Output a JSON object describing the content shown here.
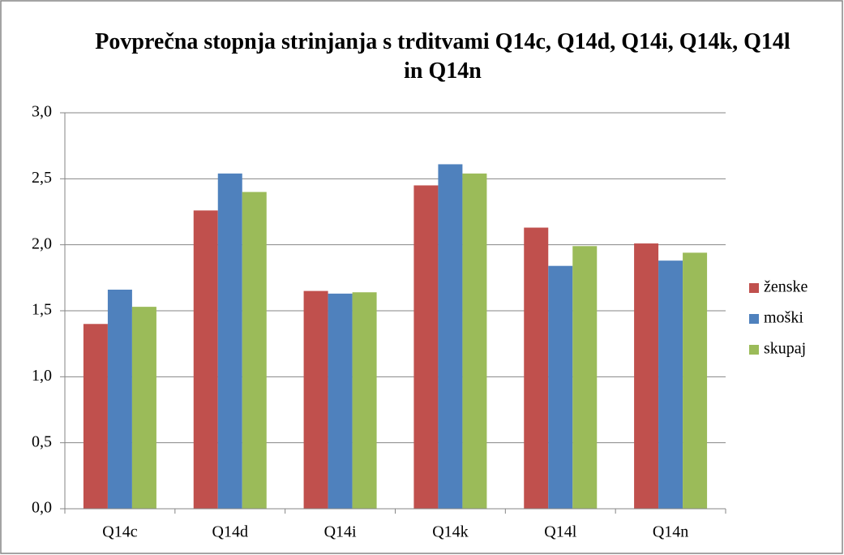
{
  "chart_data": {
    "type": "bar",
    "title": "Povprečna stopnja strinjanja s trditvami Q14c, Q14d, Q14i, Q14k, Q14l in Q14n",
    "categories": [
      "Q14c",
      "Q14d",
      "Q14i",
      "Q14k",
      "Q14l",
      "Q14n"
    ],
    "series": [
      {
        "name": "ženske",
        "color": "#c0504d",
        "values": [
          1.4,
          2.26,
          1.65,
          2.45,
          2.13,
          2.01
        ]
      },
      {
        "name": "moški",
        "color": "#4f81bd",
        "values": [
          1.66,
          2.54,
          1.63,
          2.61,
          1.84,
          1.88
        ]
      },
      {
        "name": "skupaj",
        "color": "#9bbb59",
        "values": [
          1.53,
          2.4,
          1.64,
          2.54,
          1.99,
          1.94
        ]
      }
    ],
    "ylim": [
      0,
      3
    ],
    "yticks": [
      {
        "value": 0,
        "label": "0,0"
      },
      {
        "value": 0.5,
        "label": "0,5"
      },
      {
        "value": 1,
        "label": "1,0"
      },
      {
        "value": 1.5,
        "label": "1,5"
      },
      {
        "value": 2,
        "label": "2,0"
      },
      {
        "value": 2.5,
        "label": "2,5"
      },
      {
        "value": 3,
        "label": "3,0"
      }
    ],
    "grid": true,
    "legend": "right"
  }
}
